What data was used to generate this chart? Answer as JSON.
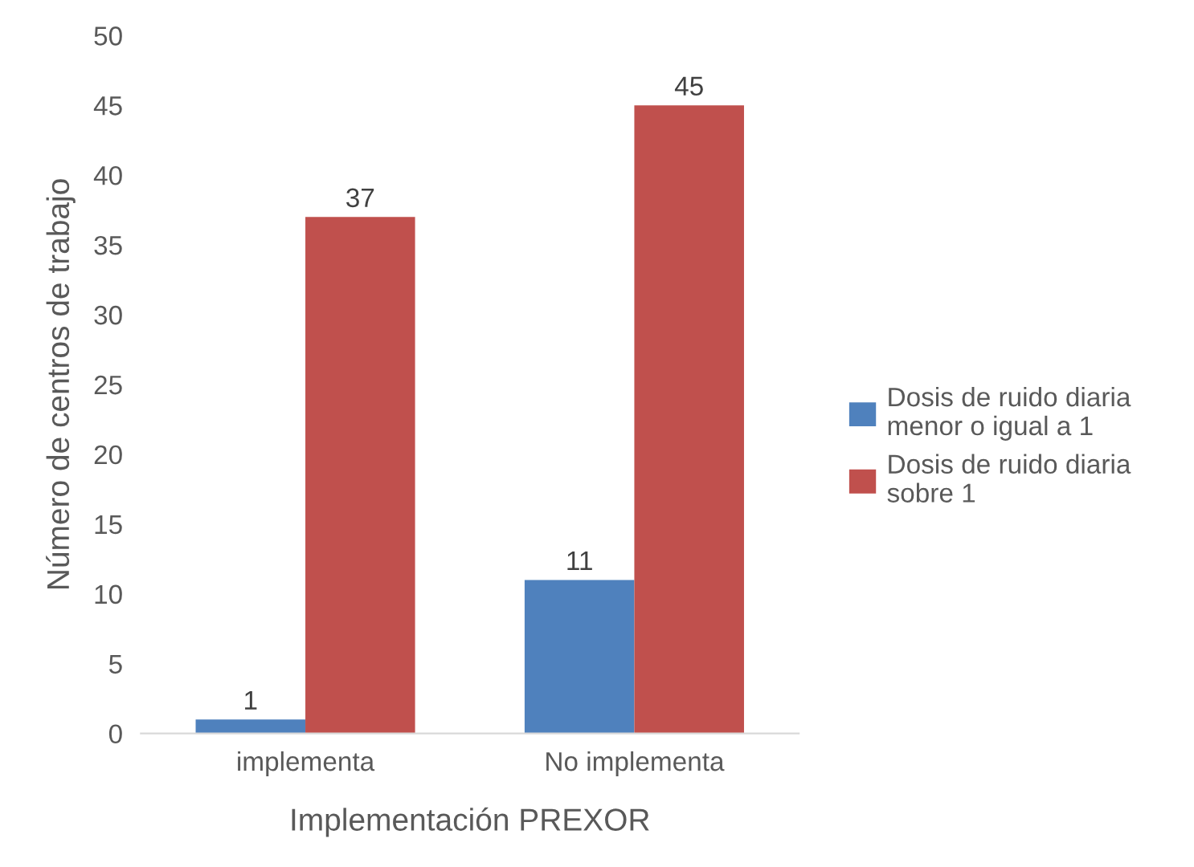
{
  "chart_data": {
    "type": "bar",
    "xlabel": "Implementación PREXOR",
    "ylabel": "Número de centros de trabajo",
    "categories": [
      "implementa",
      "No implementa"
    ],
    "series": [
      {
        "name": "Dosis de ruido diaria\nmenor o igual a 1",
        "color": "#4f81bd",
        "values": [
          1,
          11
        ]
      },
      {
        "name": "Dosis de ruido diaria\nsobre 1",
        "color": "#c0504d",
        "values": [
          37,
          45
        ]
      }
    ],
    "ylim": [
      0,
      50
    ],
    "yticks": [
      0,
      5,
      10,
      15,
      20,
      25,
      30,
      35,
      40,
      45,
      50
    ],
    "grid": false,
    "legend": "right",
    "data_labels": true
  }
}
